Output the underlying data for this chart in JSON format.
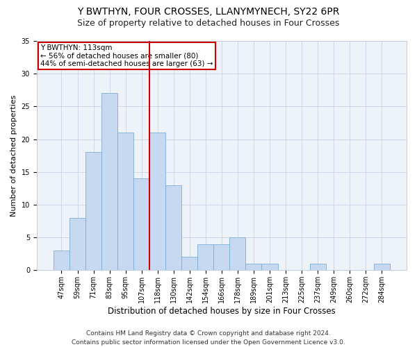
{
  "title": "Y BWTHYN, FOUR CROSSES, LLANYMYNECH, SY22 6PR",
  "subtitle": "Size of property relative to detached houses in Four Crosses",
  "xlabel": "Distribution of detached houses by size in Four Crosses",
  "ylabel": "Number of detached properties",
  "categories": [
    "47sqm",
    "59sqm",
    "71sqm",
    "83sqm",
    "95sqm",
    "107sqm",
    "118sqm",
    "130sqm",
    "142sqm",
    "154sqm",
    "166sqm",
    "178sqm",
    "189sqm",
    "201sqm",
    "213sqm",
    "225sqm",
    "237sqm",
    "249sqm",
    "260sqm",
    "272sqm",
    "284sqm"
  ],
  "values": [
    3,
    8,
    18,
    27,
    21,
    14,
    21,
    13,
    2,
    4,
    4,
    5,
    1,
    1,
    0,
    0,
    1,
    0,
    0,
    0,
    1
  ],
  "bar_color": "#c6d9f0",
  "bar_edge_color": "#7aadd4",
  "annotation_line1": "Y BWTHYN: 113sqm",
  "annotation_line2": "← 56% of detached houses are smaller (80)",
  "annotation_line3": "44% of semi-detached houses are larger (63) →",
  "annotation_box_color": "#ffffff",
  "annotation_box_edge_color": "#cc0000",
  "vertical_line_color": "#cc0000",
  "ylim": [
    0,
    35
  ],
  "yticks": [
    0,
    5,
    10,
    15,
    20,
    25,
    30,
    35
  ],
  "bg_color": "#eef2f9",
  "footer_line1": "Contains HM Land Registry data © Crown copyright and database right 2024.",
  "footer_line2": "Contains public sector information licensed under the Open Government Licence v3.0.",
  "title_fontsize": 10,
  "subtitle_fontsize": 9,
  "xlabel_fontsize": 8.5,
  "ylabel_fontsize": 8,
  "tick_fontsize": 7,
  "footer_fontsize": 6.5,
  "annotation_fontsize": 7.5
}
